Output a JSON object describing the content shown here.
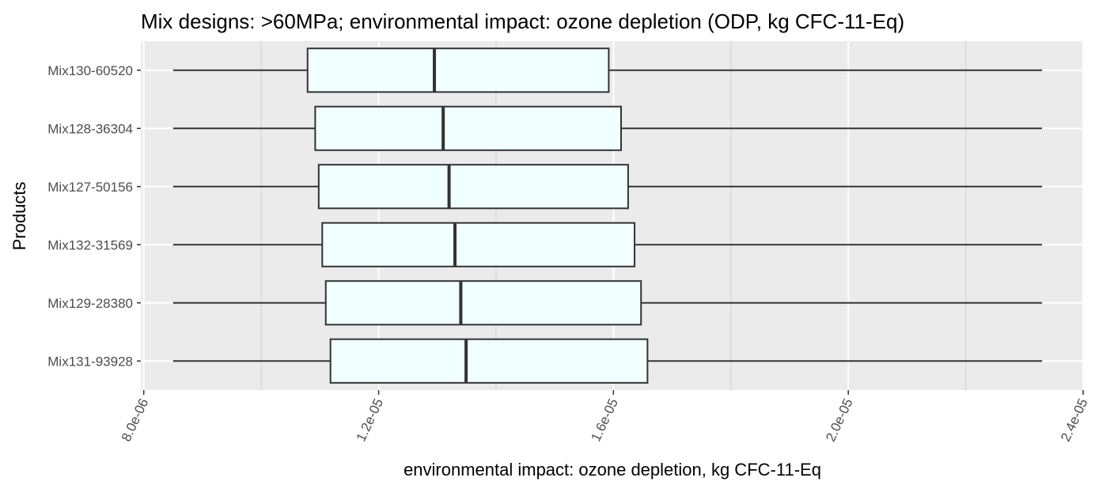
{
  "chart_data": {
    "type": "boxplot",
    "orientation": "horizontal",
    "title": "Mix designs: >60MPa; environmental impact: ozone depletion (ODP, kg CFC-11-Eq)",
    "xlabel": "environmental impact: ozone depletion, kg CFC-11-Eq",
    "ylabel": "Products",
    "xlim": [
      7.95e-06,
      2.4e-05
    ],
    "x_ticks": [
      8e-06,
      1.2e-05,
      1.6e-05,
      2e-05,
      2.4e-05
    ],
    "x_tick_labels": [
      "8.0e-06",
      "1.2e-05",
      "1.6e-05",
      "2.0e-05",
      "2.4e-05"
    ],
    "x_minor_ticks": [
      1e-05,
      1.4e-05,
      1.8e-05,
      2.2e-05
    ],
    "tick_label_rotation_deg": -65,
    "grid": true,
    "legend": "none",
    "categories": [
      "Mix130-60520",
      "Mix128-36304",
      "Mix127-50156",
      "Mix132-31569",
      "Mix129-28380",
      "Mix131-93928"
    ],
    "boxes": [
      {
        "label": "Mix130-60520",
        "min": 8.5e-06,
        "q1": 1.079e-05,
        "median": 1.295e-05,
        "q3": 1.592e-05,
        "max": 2.33e-05
      },
      {
        "label": "Mix128-36304",
        "min": 8.5e-06,
        "q1": 1.092e-05,
        "median": 1.31e-05,
        "q3": 1.613e-05,
        "max": 2.33e-05
      },
      {
        "label": "Mix127-50156",
        "min": 8.5e-06,
        "q1": 1.098e-05,
        "median": 1.32e-05,
        "q3": 1.625e-05,
        "max": 2.33e-05
      },
      {
        "label": "Mix132-31569",
        "min": 8.5e-06,
        "q1": 1.104e-05,
        "median": 1.33e-05,
        "q3": 1.636e-05,
        "max": 2.33e-05
      },
      {
        "label": "Mix129-28380",
        "min": 8.5e-06,
        "q1": 1.11e-05,
        "median": 1.34e-05,
        "q3": 1.647e-05,
        "max": 2.33e-05
      },
      {
        "label": "Mix131-93928",
        "min": 8.5e-06,
        "q1": 1.118e-05,
        "median": 1.349e-05,
        "q3": 1.658e-05,
        "max": 2.33e-05
      }
    ],
    "colors": {
      "panel_background": "#ebebeb",
      "grid_major": "#ffffff",
      "grid_minor": "#d0d0d0",
      "box_fill": "#f0ffff",
      "box_stroke": "#333333",
      "tick_text": "#4d4d4d"
    }
  }
}
